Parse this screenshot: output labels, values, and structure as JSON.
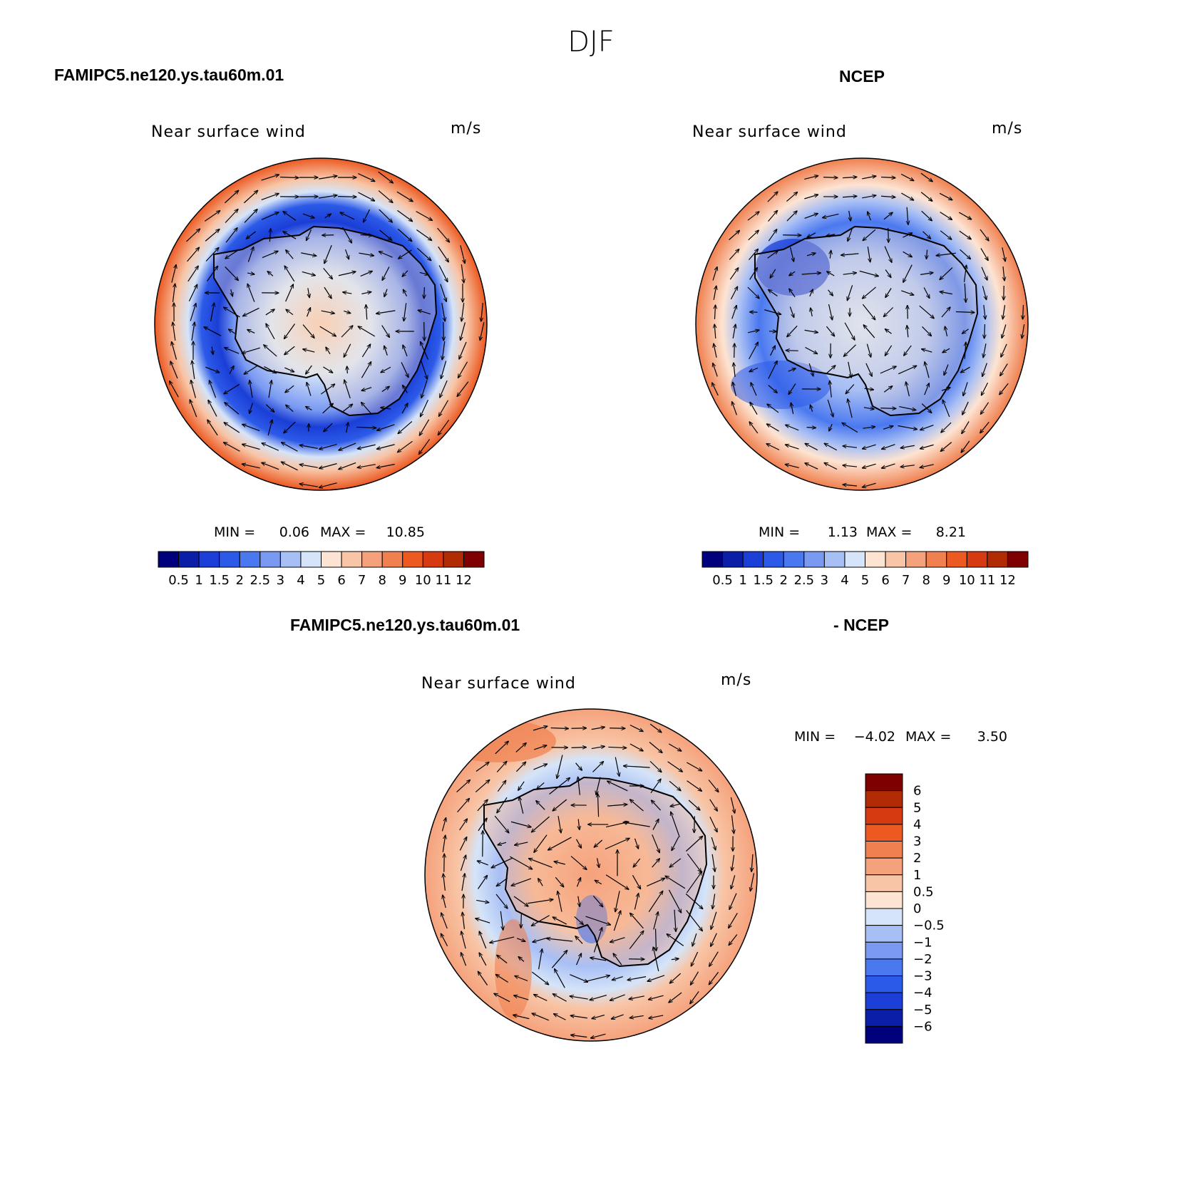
{
  "figure_title": "DJF",
  "chart_data": [
    {
      "type": "heatmap",
      "projection": "south-polar-stereographic",
      "case_label": "FAMIPC5.ne120.ys.tau60m.01",
      "title": "Near surface wind",
      "units": "m/s",
      "min_label": "MIN =",
      "min_value": "0.06",
      "max_label": "MAX =",
      "max_value": "10.85",
      "levels": [
        "0.5",
        "1",
        "1.5",
        "2",
        "2.5",
        "3",
        "4",
        "5",
        "6",
        "7",
        "8",
        "9",
        "10",
        "11",
        "12"
      ],
      "palette": [
        "#00007d",
        "#0a1ea8",
        "#1a3ed6",
        "#2c5ae8",
        "#4a78ef",
        "#7a9af2",
        "#a8bff5",
        "#d5e4f8",
        "#fde4d2",
        "#f8c5a6",
        "#f5a27c",
        "#f0804f",
        "#ec5a22",
        "#d63a10",
        "#b02a04",
        "#7f0000"
      ],
      "colorbar_orientation": "horizontal",
      "vectors": "wind-vectors"
    },
    {
      "type": "heatmap",
      "projection": "south-polar-stereographic",
      "case_label": "NCEP",
      "title": "Near surface wind",
      "units": "m/s",
      "min_label": "MIN =",
      "min_value": "1.13",
      "max_label": "MAX =",
      "max_value": "8.21",
      "levels": [
        "0.5",
        "1",
        "1.5",
        "2",
        "2.5",
        "3",
        "4",
        "5",
        "6",
        "7",
        "8",
        "9",
        "10",
        "11",
        "12"
      ],
      "palette": [
        "#00007d",
        "#0a1ea8",
        "#1a3ed6",
        "#2c5ae8",
        "#4a78ef",
        "#7a9af2",
        "#a8bff5",
        "#d5e4f8",
        "#fde4d2",
        "#f8c5a6",
        "#f5a27c",
        "#f0804f",
        "#ec5a22",
        "#d63a10",
        "#b02a04",
        "#7f0000"
      ],
      "colorbar_orientation": "horizontal",
      "vectors": "wind-vectors"
    },
    {
      "type": "heatmap",
      "projection": "south-polar-stereographic",
      "case_label": "FAMIPC5.ne120.ys.tau60m.01",
      "case_label2": "- NCEP",
      "title": "Near surface wind",
      "units": "m/s",
      "min_label": "MIN =",
      "min_value": "−4.02",
      "max_label": "MAX =",
      "max_value": "3.50",
      "levels": [
        "6",
        "5",
        "4",
        "3",
        "2",
        "1",
        "0.5",
        "0",
        "−0.5",
        "−1",
        "−2",
        "−3",
        "−4",
        "−5",
        "−6"
      ],
      "palette": [
        "#7f0000",
        "#b02a04",
        "#d63a10",
        "#ec5a22",
        "#f0804f",
        "#f5a27c",
        "#f8c5a6",
        "#fde4d2",
        "#d5e4f8",
        "#a8bff5",
        "#7a9af2",
        "#4a78ef",
        "#2c5ae8",
        "#1a3ed6",
        "#0a1ea8",
        "#00007d"
      ],
      "colorbar_orientation": "vertical",
      "vectors": "wind-difference-vectors"
    }
  ]
}
